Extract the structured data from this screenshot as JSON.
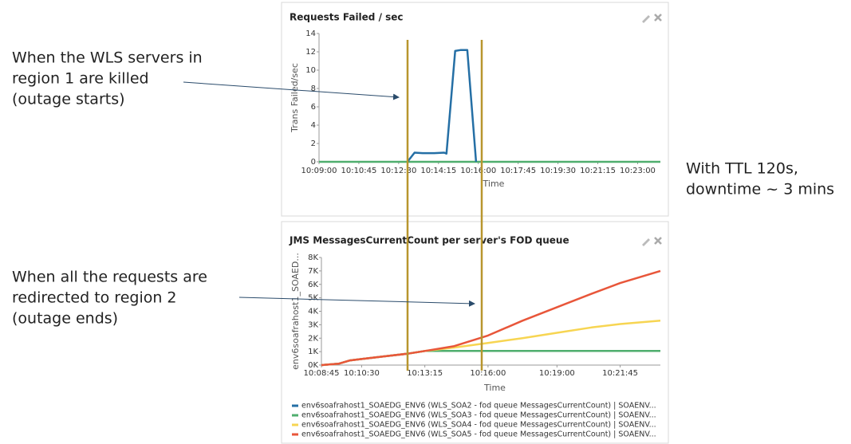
{
  "annotations": [
    [
      "When the WLS servers in",
      "region 1 are killed",
      "(outage starts)"
    ],
    [
      "When all the requests are",
      "redirected to region 2",
      "(outage ends)"
    ],
    [
      "With TTL 120s,",
      "downtime ~ 3 mins"
    ]
  ],
  "chart_data": [
    {
      "type": "line",
      "title": "Requests Failed / sec",
      "y_label": "Trans Failed/sec",
      "x_label": "Time",
      "xlim": [
        "10:09:00",
        "10:24:00"
      ],
      "xticks": [
        "10:09:00",
        "10:10:45",
        "10:12:30",
        "10:14:15",
        "10:16:00",
        "10:17:45",
        "10:19:30",
        "10:21:15",
        "10:23:00"
      ],
      "ylim": [
        0,
        14
      ],
      "yticks": [
        0,
        2,
        4,
        6,
        8,
        10,
        12,
        14
      ],
      "grid": false,
      "series": [
        {
          "color": "#4fae6e",
          "x": [
            "10:09:00",
            "10:24:00"
          ],
          "values": [
            0,
            0
          ]
        },
        {
          "color": "#256fa5",
          "x": [
            "10:12:53",
            "10:13:12",
            "10:13:33",
            "10:14:04",
            "10:14:30",
            "10:14:36",
            "10:14:59",
            "10:15:14",
            "10:15:31",
            "10:15:54"
          ],
          "values": [
            0,
            1,
            0.95,
            0.95,
            1,
            0.9,
            12.1,
            12.2,
            12.2,
            0
          ]
        }
      ]
    },
    {
      "type": "line",
      "title": "JMS MessagesCurrentCount per server's FOD queue",
      "y_label": "env6soafrahost1_SOAED...",
      "x_label": "Time",
      "xlim": [
        "10:08:45",
        "10:23:30"
      ],
      "xticks": [
        "10:08:45",
        "10:10:30",
        "10:13:15",
        "10:16:00",
        "10:19:00",
        "10:21:45"
      ],
      "ylim": [
        0,
        8000
      ],
      "yticks": [
        {
          "value": 0,
          "label": "0K"
        },
        {
          "value": 1000,
          "label": "1K"
        },
        {
          "value": 2000,
          "label": "2K"
        },
        {
          "value": 3000,
          "label": "3K"
        },
        {
          "value": 4000,
          "label": "4K"
        },
        {
          "value": 5000,
          "label": "5K"
        },
        {
          "value": 6000,
          "label": "6K"
        },
        {
          "value": 7000,
          "label": "7K"
        },
        {
          "value": 8000,
          "label": "8K"
        }
      ],
      "grid": false,
      "x": [
        "10:08:45",
        "10:09:30",
        "10:10:00",
        "10:10:30",
        "10:11:30",
        "10:12:30",
        "10:13:15",
        "10:14:30",
        "10:16:00",
        "10:17:30",
        "10:19:00",
        "10:20:30",
        "10:21:45",
        "10:23:30"
      ],
      "series": [
        {
          "name": "env6soafrahost1_SOAEDG_ENV6 (WLS_SOA2 - fod queue MessagesCurrentCount) | SOAENV...",
          "color": "#256fa5",
          "values": [
            0,
            100,
            350,
            450,
            650,
            850,
            1050,
            1050,
            1050,
            1050,
            1050,
            1050,
            1050,
            1050
          ]
        },
        {
          "name": "env6soafrahost1_SOAEDG_ENV6 (WLS_SOA3 - fod queue MessagesCurrentCount) | SOAENV...",
          "color": "#4fae6e",
          "values": [
            0,
            100,
            350,
            450,
            650,
            850,
            1050,
            1050,
            1050,
            1050,
            1050,
            1050,
            1050,
            1050
          ]
        },
        {
          "name": "env6soafrahost1_SOAEDG_ENV6 (WLS_SOA4 - fod queue MessagesCurrentCount) | SOAENV...",
          "color": "#f7d552",
          "values": [
            0,
            100,
            350,
            450,
            650,
            850,
            1050,
            1300,
            1650,
            2000,
            2400,
            2800,
            3050,
            3300
          ]
        },
        {
          "name": "env6soafrahost1_SOAEDG_ENV6 (WLS_SOA5 - fod queue MessagesCurrentCount) | SOAENV...",
          "color": "#e8563a",
          "values": [
            0,
            100,
            350,
            450,
            650,
            850,
            1050,
            1400,
            2200,
            3300,
            4300,
            5300,
            6100,
            7000
          ]
        }
      ]
    }
  ]
}
